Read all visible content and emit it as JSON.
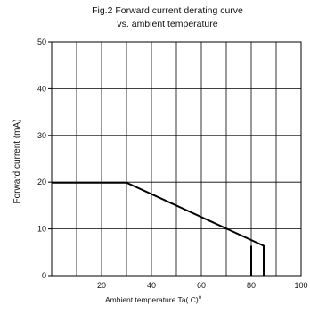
{
  "chart_data": {
    "type": "line",
    "title_line1": "Fig.2 Forward current derating curve",
    "title_line2": "vs. ambient temperature",
    "xlabel": "Ambient temperature Ta( C)",
    "xlabel_degree_mark": "o",
    "ylabel": "Forward current (mA)",
    "xlim": [
      0,
      100
    ],
    "ylim": [
      0,
      50
    ],
    "x_ticks": [
      20,
      40,
      60,
      80,
      100
    ],
    "y_ticks": [
      0,
      10,
      20,
      30,
      40,
      50
    ],
    "x_gridlines": [
      10,
      20,
      30,
      40,
      50,
      60,
      70,
      80,
      90
    ],
    "y_gridlines": [
      10,
      20,
      30,
      40
    ],
    "grid": true,
    "legend": "none",
    "line_color": "#000000",
    "grid_color": "#000000",
    "series": [
      {
        "points": [
          [
            0,
            19.9
          ],
          [
            30,
            19.9
          ],
          [
            85,
            6.4
          ],
          [
            85,
            0
          ]
        ]
      },
      {
        "points": [
          [
            80,
            6.4
          ],
          [
            80,
            0
          ]
        ]
      }
    ]
  }
}
